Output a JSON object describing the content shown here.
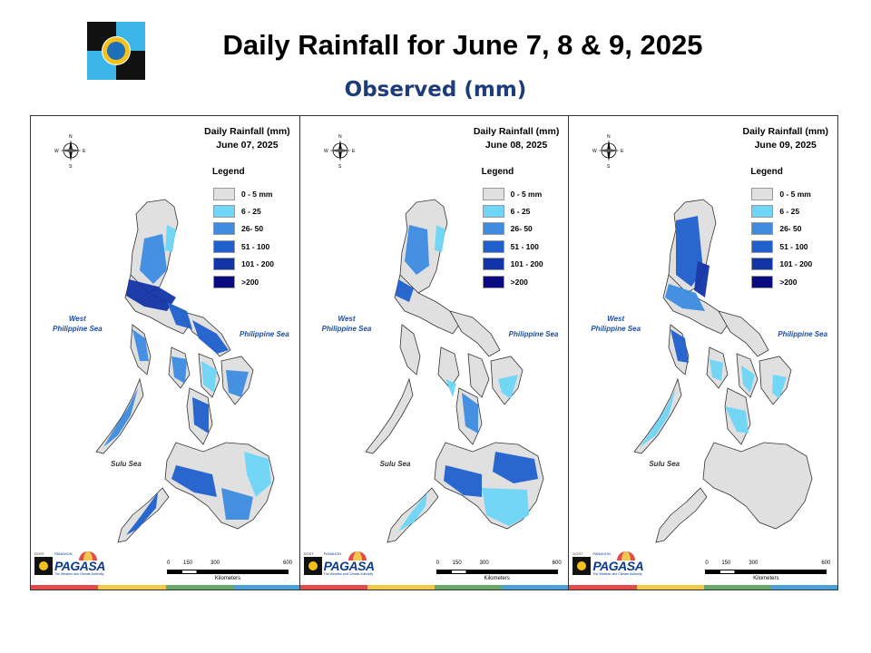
{
  "header": {
    "title": "Daily Rainfall for June 7, 8 & 9, 2025",
    "subtitle": "Observed (mm)"
  },
  "legend": {
    "title": "Legend",
    "classes": [
      {
        "label": "0 - 5 mm",
        "color": "#e0e0e0"
      },
      {
        "label": "6 - 25",
        "color": "#6fd6f7"
      },
      {
        "label": "26- 50",
        "color": "#3d8ce0"
      },
      {
        "label": "51 - 100",
        "color": "#2060cc"
      },
      {
        "label": "101 - 200",
        "color": "#1234a8"
      },
      {
        "label": ">200",
        "color": "#0a0a80"
      }
    ]
  },
  "panels": [
    {
      "heading": "Daily Rainfall (mm)",
      "date": "June 07, 2025"
    },
    {
      "heading": "Daily Rainfall (mm)",
      "date": "June 08, 2025"
    },
    {
      "heading": "Daily Rainfall (mm)",
      "date": "June 09, 2025"
    }
  ],
  "seas": {
    "west": "West\nPhilippine Sea",
    "east": "Philippine Sea",
    "sulu": "Sulu Sea"
  },
  "compass": {
    "n": "N",
    "s": "S",
    "e": "E",
    "w": "W"
  },
  "scale": {
    "ticks": [
      "0",
      "150",
      "300",
      "600"
    ],
    "unit": "Kilometers"
  },
  "branding": {
    "brand": "PAGASA",
    "tagline": "The Weather and Climate Authority",
    "agency": "DOST",
    "app": "PANAHON"
  },
  "stripe_colors": [
    "#e34a4a",
    "#f2c94c",
    "#6aa86a",
    "#4aa0d8"
  ]
}
